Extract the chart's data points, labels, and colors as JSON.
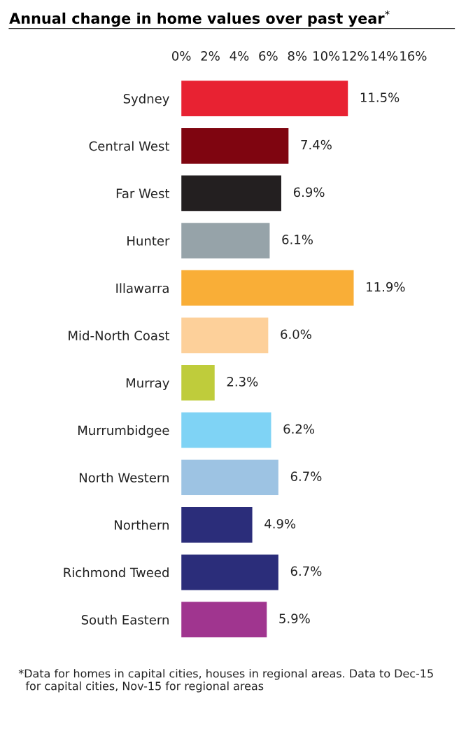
{
  "chart_data": {
    "type": "bar",
    "orientation": "horizontal",
    "title": "Annual change in home values over past year$^{*}$",
    "categories": [
      "Sydney",
      "Central West",
      "Far West",
      "Hunter",
      "Illawarra",
      "Mid-North Coast",
      "Murray",
      "Murrumbidgee",
      "North Western",
      "Northern",
      "Richmond Tweed",
      "South Eastern"
    ],
    "values": [
      11.5,
      7.4,
      6.9,
      6.1,
      11.9,
      6.0,
      2.3,
      6.2,
      6.7,
      4.9,
      6.7,
      5.9
    ],
    "value_labels": [
      "11.5%",
      "7.4%",
      "6.9%",
      "6.1%",
      "11.9%",
      "6.0%",
      "2.3%",
      "6.2%",
      "6.7%",
      "4.9%",
      "6.7%",
      "5.9%"
    ],
    "colors": [
      "#e82232",
      "#7f0510",
      "#231f20",
      "#96a3a9",
      "#f9ae37",
      "#fdd09a",
      "#bfcc3b",
      "#7fd3f5",
      "#9dc3e3",
      "#2b2d7a",
      "#2b2d7a",
      "#a0358f"
    ],
    "xlim": [
      0,
      16
    ],
    "xticks": [
      {
        "value": 0,
        "label": "0%"
      },
      {
        "value": 2,
        "label": "2%"
      },
      {
        "value": 4,
        "label": "4%"
      },
      {
        "value": 6,
        "label": "6%"
      },
      {
        "value": 8,
        "label": "8%"
      },
      {
        "value": 10,
        "label": "10%"
      },
      {
        "value": 12,
        "label": "12%"
      },
      {
        "value": 14,
        "label": "14%"
      },
      {
        "value": 16,
        "label": "16%"
      }
    ],
    "annotations": [
      "*Data for homes in capital cities, houses in regional areas. Data to Dec-15\n  for capital cities, Nov-15 for regional areas"
    ]
  }
}
